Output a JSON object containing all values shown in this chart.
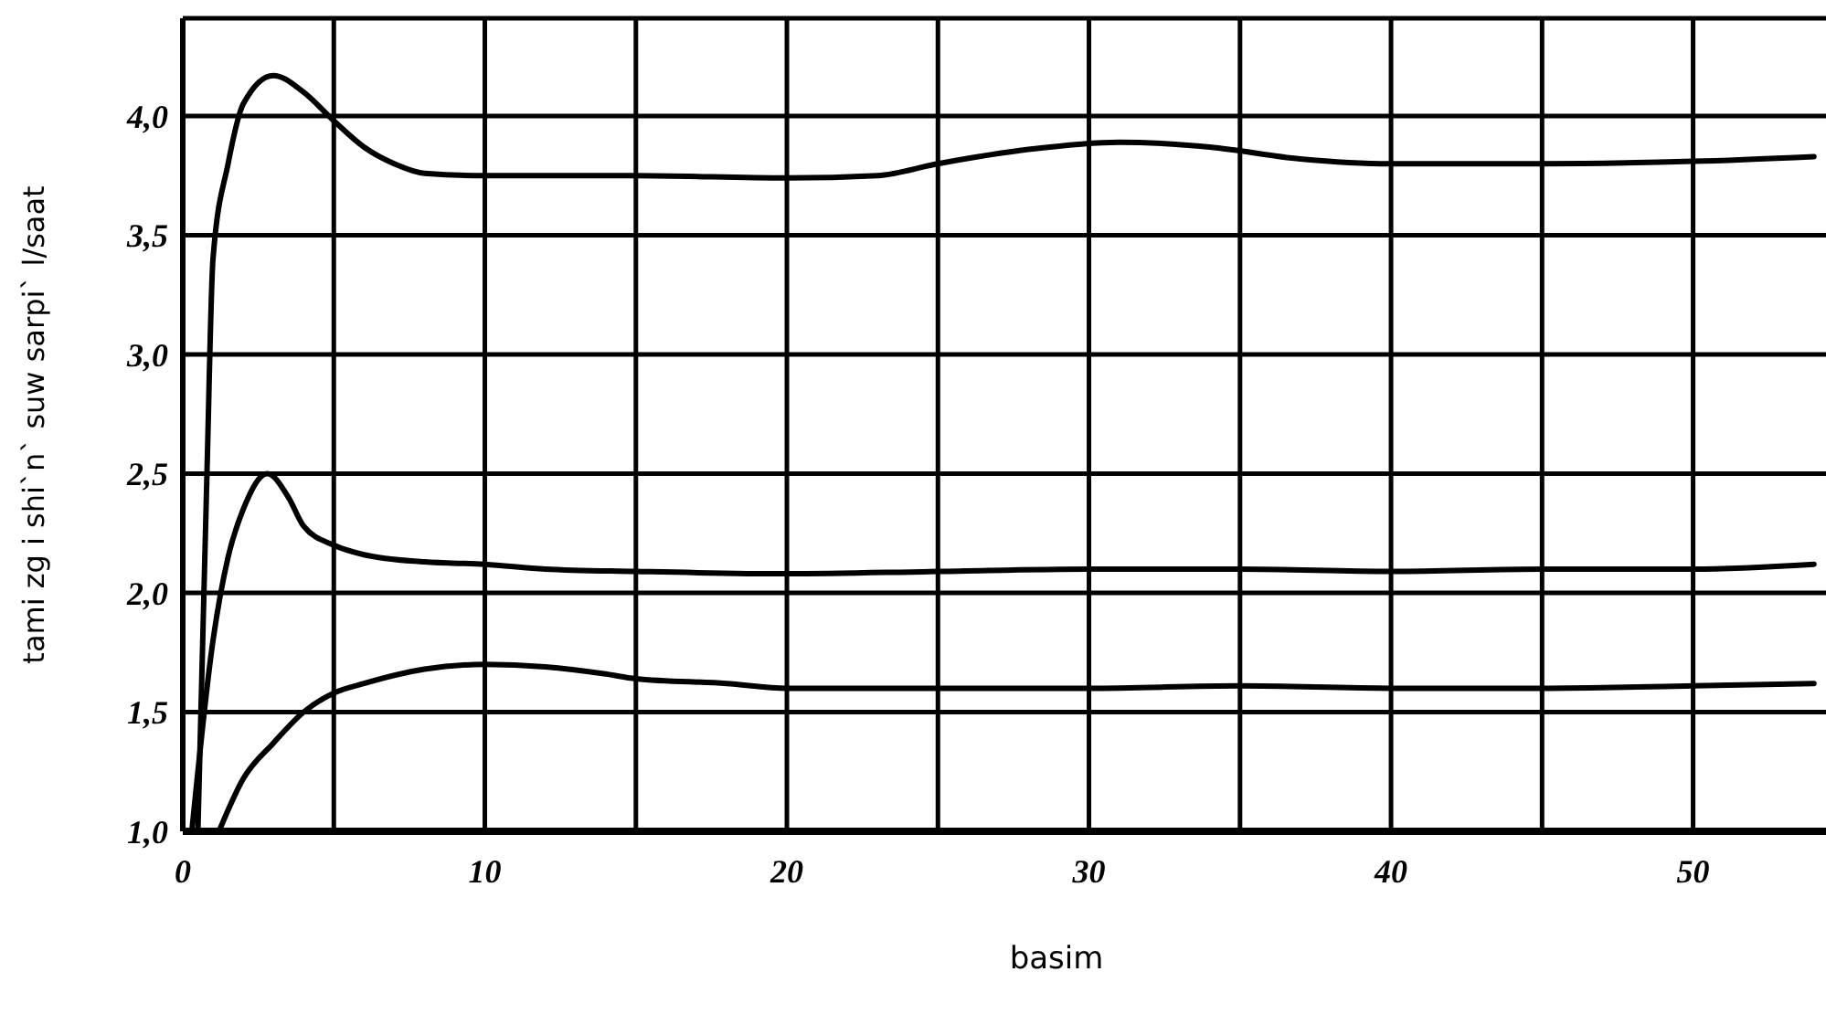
{
  "chart_data": {
    "type": "line",
    "xlabel": "basim",
    "ylabel": "tami zg i shi`n` suw sarpi` l/saat",
    "xlim": [
      0,
      54.4
    ],
    "ylim": [
      1,
      4.41
    ],
    "xticks": [
      0,
      {
        "value": 5,
        "label": null
      },
      10,
      {
        "value": 15,
        "label": null
      },
      20,
      {
        "value": 25,
        "label": null
      },
      30,
      {
        "value": 35,
        "label": null
      },
      40,
      {
        "value": 45,
        "label": null
      },
      50
    ],
    "yticks": [
      {
        "value": 1,
        "label": "1,0"
      },
      {
        "value": 1.5,
        "label": "1,5"
      },
      {
        "value": 2,
        "label": "2,0"
      },
      {
        "value": 2.5,
        "label": "2,5"
      },
      {
        "value": 3,
        "label": "3,0"
      },
      {
        "value": 3.5,
        "label": "3,5"
      },
      {
        "value": 4,
        "label": "4,0"
      }
    ],
    "grid": true,
    "marker": "none",
    "line_style": "solid",
    "series": [
      {
        "color": "#000000",
        "x": [
          0.5,
          0.8,
          1,
          1.5,
          2,
          3,
          4,
          5,
          6,
          7,
          8,
          10,
          15,
          20,
          23,
          25,
          28,
          31,
          34,
          37,
          40,
          45,
          50,
          54
        ],
        "values": [
          1.0,
          2.5,
          3.4,
          3.8,
          4.05,
          4.17,
          4.1,
          3.98,
          3.87,
          3.8,
          3.76,
          3.75,
          3.75,
          3.74,
          3.75,
          3.8,
          3.86,
          3.89,
          3.87,
          3.82,
          3.8,
          3.8,
          3.81,
          3.83
        ]
      },
      {
        "color": "#000000",
        "x": [
          0.3,
          1,
          1.5,
          2,
          2.8,
          3.5,
          4,
          5,
          6,
          8,
          10,
          12,
          15,
          20,
          25,
          30,
          35,
          40,
          45,
          50,
          54
        ],
        "values": [
          1.0,
          1.8,
          2.15,
          2.35,
          2.5,
          2.4,
          2.28,
          2.2,
          2.16,
          2.13,
          2.12,
          2.1,
          2.09,
          2.08,
          2.09,
          2.1,
          2.1,
          2.09,
          2.1,
          2.1,
          2.12
        ]
      },
      {
        "color": "#000000",
        "x": [
          1.2,
          2,
          3,
          4,
          5,
          6,
          8,
          10,
          12,
          14,
          15,
          18,
          20,
          25,
          30,
          35,
          40,
          45,
          50,
          54
        ],
        "values": [
          1.0,
          1.22,
          1.37,
          1.5,
          1.58,
          1.62,
          1.68,
          1.7,
          1.69,
          1.66,
          1.64,
          1.62,
          1.6,
          1.6,
          1.6,
          1.61,
          1.6,
          1.6,
          1.61,
          1.62
        ]
      }
    ]
  }
}
